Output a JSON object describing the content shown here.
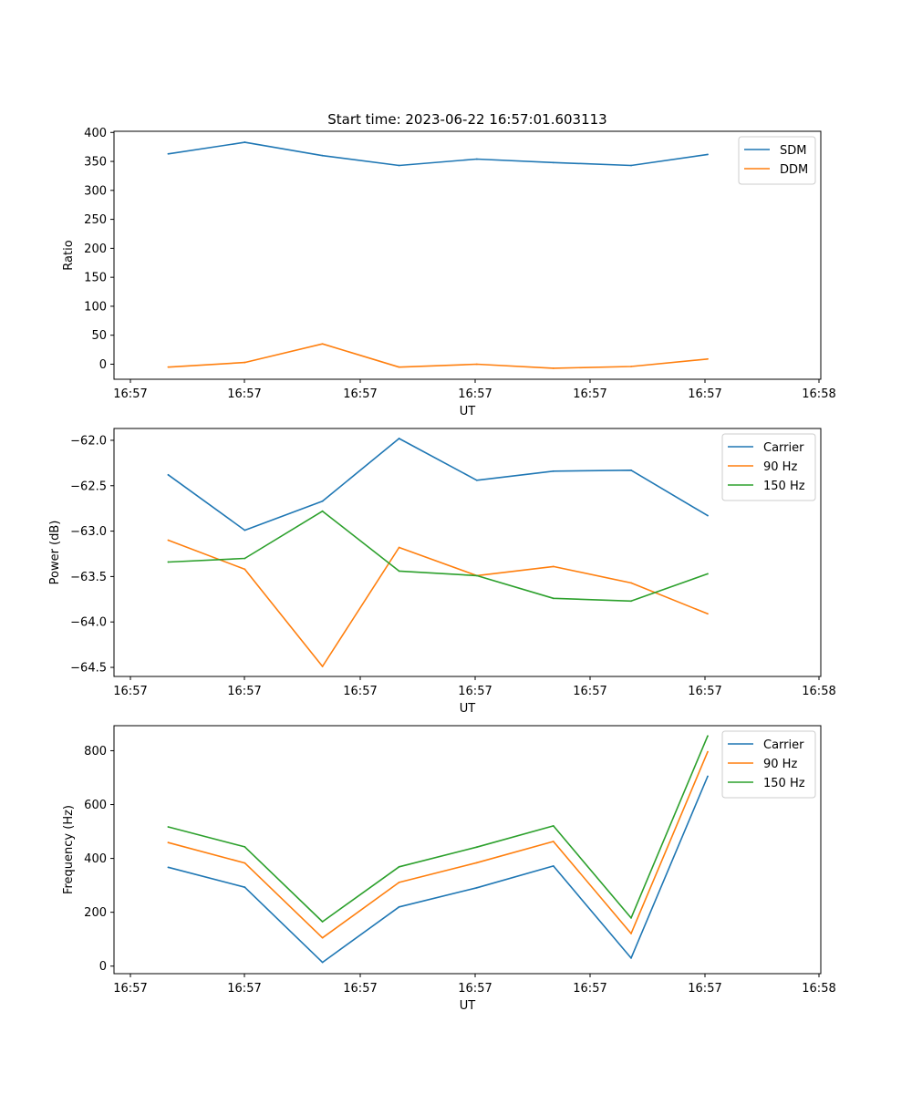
{
  "title": "Start time: 2023-06-22 16:57:01.603113",
  "colors": {
    "blue": "#1f77b4",
    "orange": "#ff7f0e",
    "green": "#2ca02c"
  },
  "chart_data": [
    {
      "type": "line",
      "xlabel": "UT",
      "ylabel": "Ratio",
      "x_tick_labels": [
        "16:57",
        "16:57",
        "16:57",
        "16:57",
        "16:57",
        "16:57",
        "16:58"
      ],
      "x": [
        0.46,
        1.11,
        1.77,
        2.42,
        3.08,
        3.73,
        4.39,
        5.04
      ],
      "xlim": [
        0,
        6
      ],
      "ylim": [
        -26,
        402
      ],
      "yticks": [
        0,
        50,
        100,
        150,
        200,
        250,
        300,
        350,
        400
      ],
      "legend": "top-right",
      "grid": false,
      "series": [
        {
          "name": "SDM",
          "color": "#1f77b4",
          "values": [
            363,
            383,
            360,
            343,
            354,
            348,
            343,
            362
          ]
        },
        {
          "name": "DDM",
          "color": "#ff7f0e",
          "values": [
            -5,
            3,
            35,
            -5,
            0,
            -7,
            -4,
            9
          ]
        }
      ]
    },
    {
      "type": "line",
      "xlabel": "UT",
      "ylabel": "Power (dB)",
      "x_tick_labels": [
        "16:57",
        "16:57",
        "16:57",
        "16:57",
        "16:57",
        "16:57",
        "16:58"
      ],
      "x": [
        0.46,
        1.11,
        1.77,
        2.42,
        3.08,
        3.73,
        4.39,
        5.04
      ],
      "xlim": [
        0,
        6
      ],
      "ylim": [
        -64.6,
        -61.87
      ],
      "yticks": [
        -64.5,
        -64.0,
        -63.5,
        -63.0,
        -62.5,
        -62.0
      ],
      "legend": "top-right",
      "grid": false,
      "series": [
        {
          "name": "Carrier",
          "color": "#1f77b4",
          "values": [
            -62.38,
            -62.99,
            -62.67,
            -61.98,
            -62.44,
            -62.34,
            -62.33,
            -62.83
          ]
        },
        {
          "name": "90 Hz",
          "color": "#ff7f0e",
          "values": [
            -63.1,
            -63.42,
            -64.49,
            -63.18,
            -63.49,
            -63.39,
            -63.57,
            -63.91
          ]
        },
        {
          "name": "150 Hz",
          "color": "#2ca02c",
          "values": [
            -63.34,
            -63.3,
            -62.78,
            -63.44,
            -63.49,
            -63.74,
            -63.77,
            -63.47
          ]
        }
      ]
    },
    {
      "type": "line",
      "xlabel": "UT",
      "ylabel": "Frequency (Hz)",
      "x_tick_labels": [
        "16:57",
        "16:57",
        "16:57",
        "16:57",
        "16:57",
        "16:57",
        "16:58"
      ],
      "x": [
        0.46,
        1.11,
        1.77,
        2.42,
        3.08,
        3.73,
        4.39,
        5.04
      ],
      "xlim": [
        0,
        6
      ],
      "ylim": [
        -28,
        893
      ],
      "yticks": [
        0,
        200,
        400,
        600,
        800
      ],
      "legend": "top-right",
      "grid": false,
      "series": [
        {
          "name": "Carrier",
          "color": "#1f77b4",
          "values": [
            367,
            293,
            14,
            220,
            291,
            372,
            30,
            705
          ]
        },
        {
          "name": "90 Hz",
          "color": "#ff7f0e",
          "values": [
            459,
            383,
            105,
            311,
            384,
            463,
            121,
            796
          ]
        },
        {
          "name": "150 Hz",
          "color": "#2ca02c",
          "values": [
            517,
            443,
            165,
            369,
            442,
            521,
            179,
            855
          ]
        }
      ]
    }
  ]
}
